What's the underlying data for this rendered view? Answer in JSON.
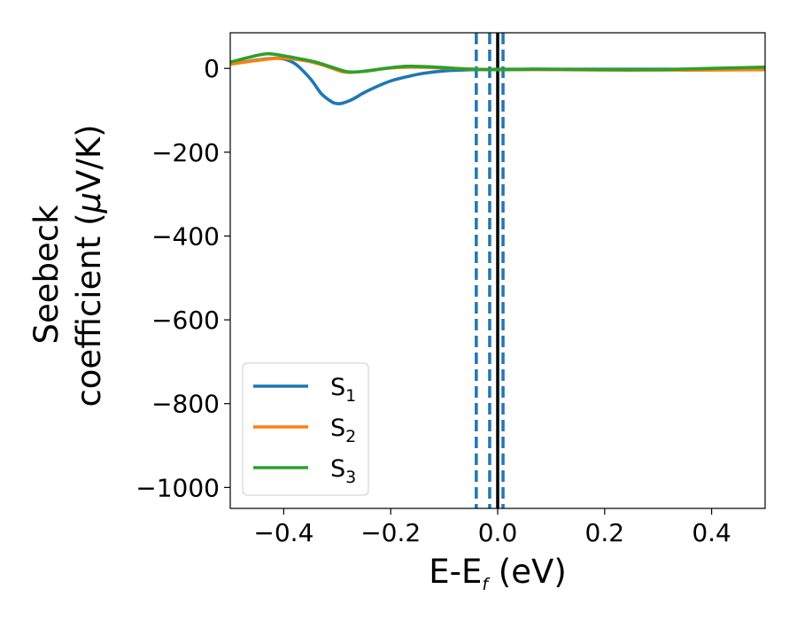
{
  "chart_data": {
    "type": "line",
    "xlabel_main": "E-E",
    "xlabel_sub": "f",
    "xlabel_unit": " (eV)",
    "ylabel_line1": "Seebeck",
    "ylabel_line2": "coefficient  (",
    "ylabel_mu": "μ",
    "ylabel_unit": "V/K)",
    "xlim": [
      -0.5,
      0.5
    ],
    "ylim": [
      -1050,
      85
    ],
    "xticks": [
      -0.4,
      -0.2,
      0.0,
      0.2,
      0.4
    ],
    "xtick_labels": [
      "−0.4",
      "−0.2",
      "0.0",
      "0.2",
      "0.4"
    ],
    "yticks": [
      0,
      -200,
      -400,
      -600,
      -800,
      -1000
    ],
    "ytick_labels": [
      "0",
      "−200",
      "−400",
      "−600",
      "−800",
      "−1000"
    ],
    "legend_position": "lower-left",
    "colors": {
      "s1": "#1f77b4",
      "s2": "#ff7f0e",
      "s3": "#2ca02c",
      "fermi": "#000000"
    },
    "series": [
      {
        "name": "S1",
        "label_main": "S",
        "label_sub": "1",
        "color": "#1f77b4",
        "x": [
          -0.5,
          -0.45,
          -0.41,
          -0.38,
          -0.35,
          -0.33,
          -0.31,
          -0.3,
          -0.29,
          -0.27,
          -0.25,
          -0.22,
          -0.2,
          -0.17,
          -0.14,
          -0.1,
          -0.05,
          0.0,
          0.05,
          0.1,
          0.2,
          0.3,
          0.4,
          0.5
        ],
        "y": [
          10,
          20,
          24,
          12,
          -25,
          -60,
          -80,
          -84,
          -83,
          -73,
          -58,
          -40,
          -30,
          -20,
          -12,
          -6,
          -3,
          -2,
          -2,
          -2,
          -2,
          -2,
          -2,
          -2
        ]
      },
      {
        "name": "S2",
        "label_main": "S",
        "label_sub": "2",
        "color": "#ff7f0e",
        "x": [
          -0.5,
          -0.45,
          -0.41,
          -0.38,
          -0.35,
          -0.32,
          -0.29,
          -0.27,
          -0.24,
          -0.2,
          -0.16,
          -0.12,
          -0.08,
          -0.04,
          0.0,
          0.05,
          0.1,
          0.2,
          0.3,
          0.4,
          0.5
        ],
        "y": [
          10,
          19,
          24,
          22,
          16,
          5,
          -8,
          -9,
          -5,
          1,
          3,
          2,
          0,
          -2,
          -3,
          -3,
          -3,
          -4,
          -4,
          -4,
          -3
        ]
      },
      {
        "name": "S3",
        "label_main": "S",
        "label_sub": "3",
        "color": "#2ca02c",
        "x": [
          -0.5,
          -0.46,
          -0.43,
          -0.4,
          -0.37,
          -0.34,
          -0.31,
          -0.28,
          -0.25,
          -0.21,
          -0.17,
          -0.13,
          -0.09,
          -0.05,
          0.0,
          0.05,
          0.1,
          0.2,
          0.3,
          0.4,
          0.5
        ],
        "y": [
          15,
          28,
          35,
          30,
          23,
          15,
          3,
          -8,
          -7,
          0,
          5,
          4,
          1,
          -2,
          -3,
          -2,
          -2,
          -3,
          -3,
          0,
          3
        ]
      }
    ],
    "vlines": [
      {
        "x": -0.04,
        "style": "dashed",
        "color": "#1f77b4"
      },
      {
        "x": -0.015,
        "style": "dashed",
        "color": "#1f77b4"
      },
      {
        "x": 0.01,
        "style": "dashed",
        "color": "#1f77b4"
      },
      {
        "x": 0.0,
        "style": "solid",
        "color": "#000000"
      }
    ]
  }
}
